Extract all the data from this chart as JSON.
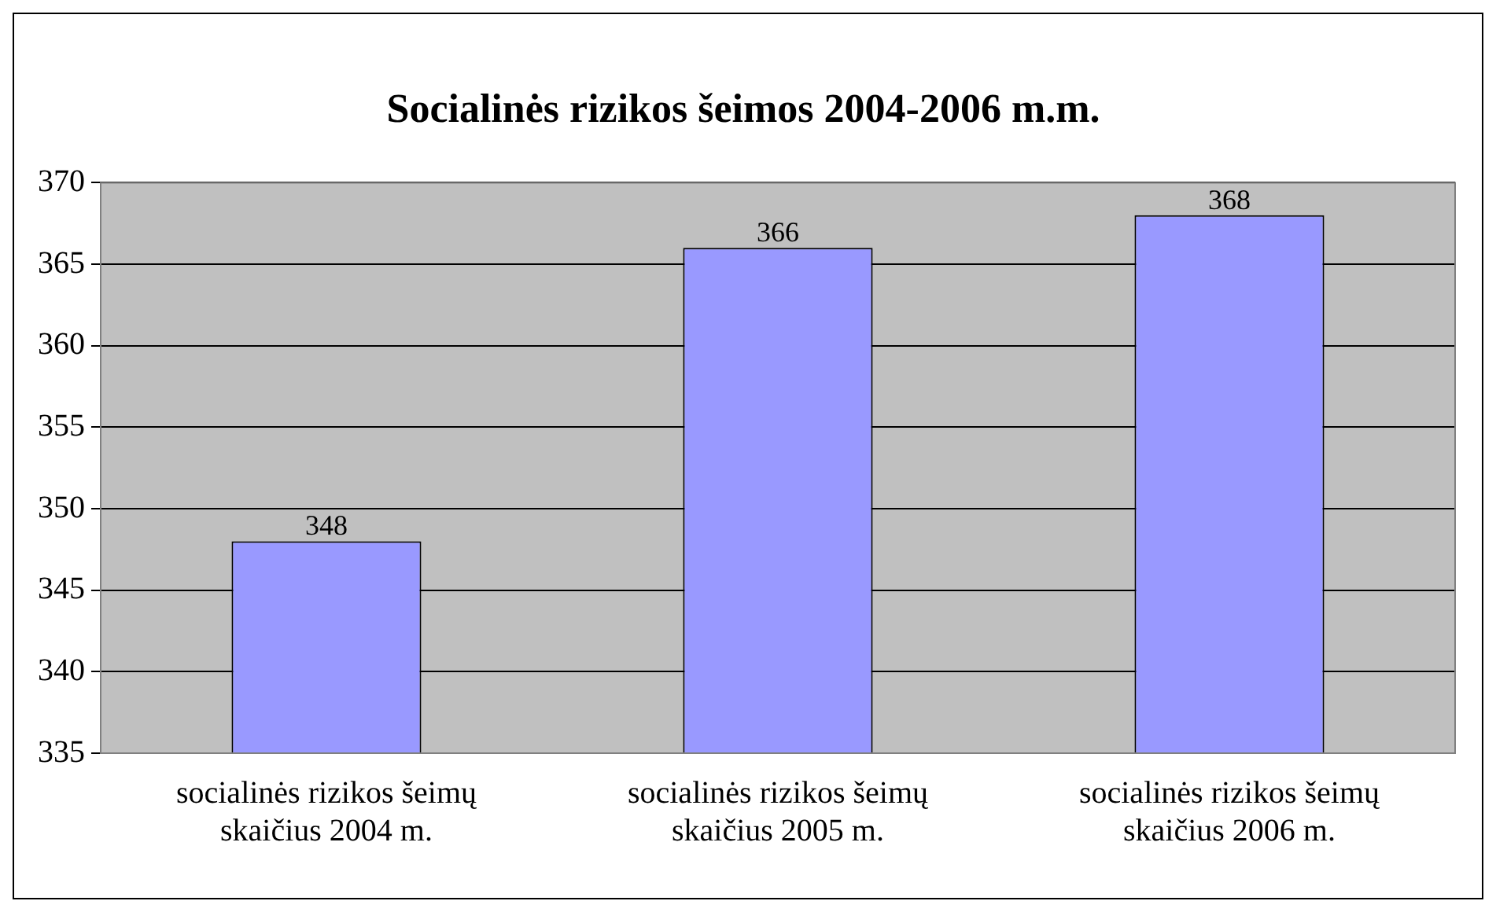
{
  "chart_data": {
    "type": "bar",
    "title": "Socialinės rizikos šeimos 2004-2006 m.m.",
    "categories": [
      "socialinės rizikos šeimų skaičius 2004 m.",
      "socialinės rizikos šeimų skaičius 2005 m.",
      "socialinės rizikos šeimų skaičius 2006 m."
    ],
    "values": [
      348,
      366,
      368
    ],
    "color": "#9999ff",
    "ylim": [
      335,
      370
    ],
    "yticks": [
      335,
      340,
      345,
      350,
      355,
      360,
      365,
      370
    ],
    "grid": "y",
    "data_labels": true
  }
}
